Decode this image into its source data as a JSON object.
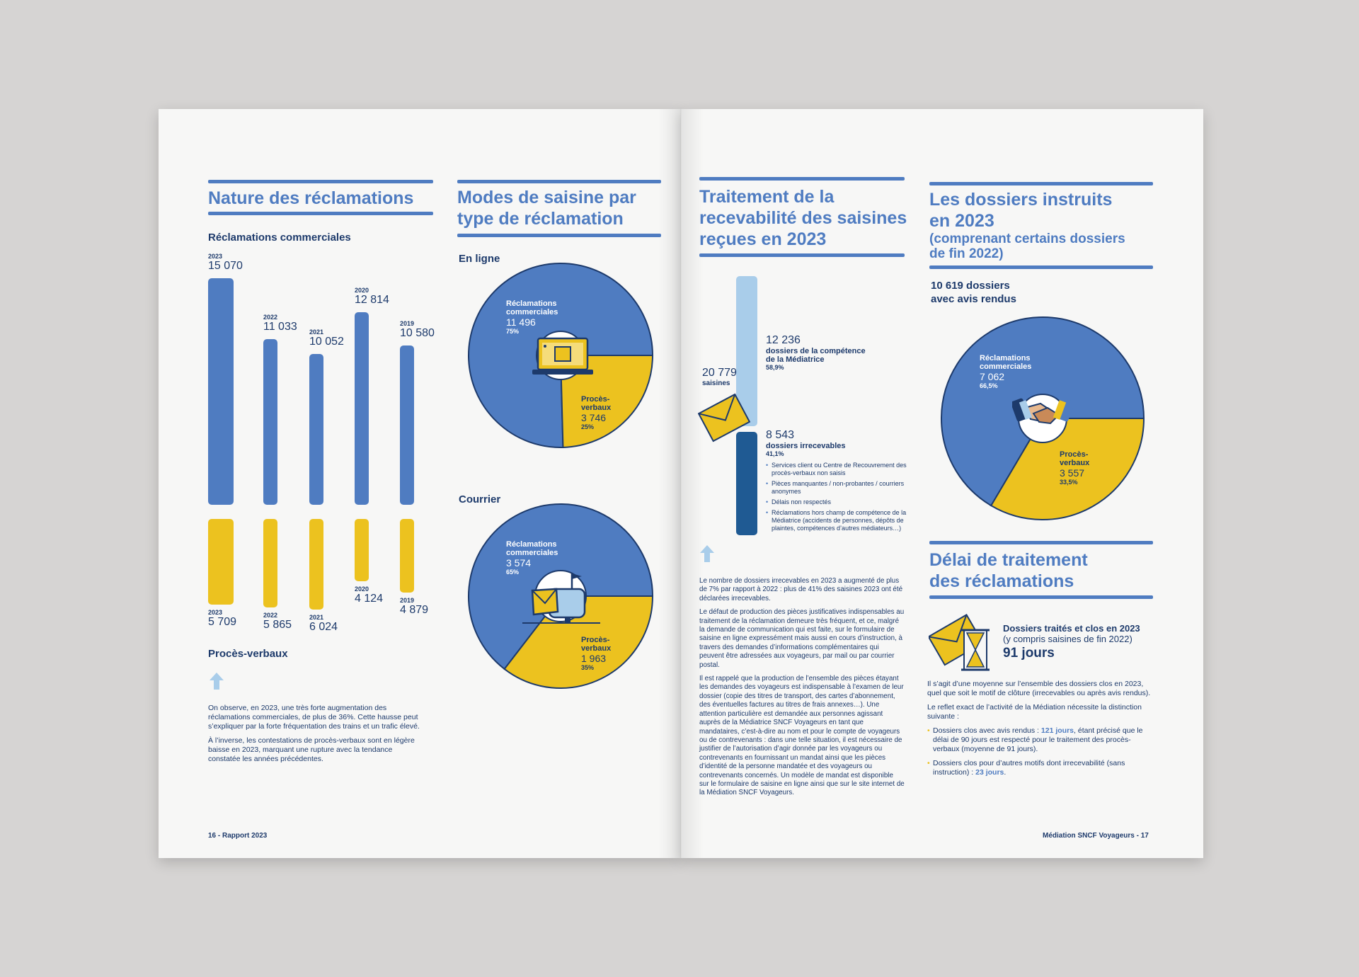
{
  "left": {
    "nature": {
      "title": "Nature des réclamations",
      "subtitle": "Réclamations commerciales",
      "commercial_bars": [
        {
          "year": "2023",
          "value": "15 070"
        },
        {
          "year": "2022",
          "value": "11 033"
        },
        {
          "year": "2021",
          "value": "10 052"
        },
        {
          "year": "2020",
          "value": "12 814"
        },
        {
          "year": "2019",
          "value": "10 580"
        }
      ],
      "pv_bars": [
        {
          "year": "2023",
          "value": "5 709"
        },
        {
          "year": "2022",
          "value": "5 865"
        },
        {
          "year": "2021",
          "value": "6 024"
        },
        {
          "year": "2020",
          "value": "4 124"
        },
        {
          "year": "2019",
          "value": "4 879"
        }
      ],
      "pv_label": "Procès-verbaux",
      "paragraph1": "On observe, en 2023, une très forte augmentation des réclamations commerciales, de plus de 36%. Cette hausse peut s’expliquer par la forte fréquentation des trains et un trafic élevé.",
      "paragraph2": "À l’inverse, les contestations de procès-verbaux sont en légère baisse en 2023, marquant une rupture avec la tendance constatée les années précédentes."
    },
    "modes": {
      "title_line1": "Modes de saisine par",
      "title_line2": "type de réclamation",
      "online": {
        "label": "En ligne",
        "commercial_label_1": "Réclamations",
        "commercial_label_2": "commerciales",
        "commercial_value": "11 496",
        "commercial_pct": "75%",
        "pv_label_1": "Procès-",
        "pv_label_2": "verbaux",
        "pv_value": "3 746",
        "pv_pct": "25%"
      },
      "mail": {
        "label": "Courrier",
        "commercial_label_1": "Réclamations",
        "commercial_label_2": "commerciales",
        "commercial_value": "3 574",
        "commercial_pct": "65%",
        "pv_label_1": "Procès-",
        "pv_label_2": "verbaux",
        "pv_value": "1 963",
        "pv_pct": "35%"
      }
    },
    "footer": "16 - Rapport 2023"
  },
  "right": {
    "traitement": {
      "title_line1": "Traitement de la",
      "title_line2": "recevabilité des saisines",
      "title_line3": "reçues en 2023",
      "total_value": "20 779",
      "total_label": "saisines",
      "competence_value": "12 236",
      "competence_label_1": "dossiers de la compétence",
      "competence_label_2": "de la Médiatrice",
      "competence_pct": "58,9%",
      "irrecevable_value": "8 543",
      "irrecevable_label": "dossiers irrecevables",
      "irrecevable_pct": "41,1%",
      "bullets": [
        "Services client ou Centre de Recouvrement des procès-verbaux non saisis",
        "Pièces manquantes / non-probantes / courriers anonymes",
        "Délais non respectés",
        "Réclamations hors champ de compétence de la Médiatrice (accidents de personnes, dépôts de plaintes, compétences d’autres médiateurs…)"
      ],
      "paragraph1": "Le nombre de dossiers irrecevables en 2023 a augmenté de plus de 7% par rapport à 2022 : plus de 41% des saisines 2023 ont été déclarées irrecevables.",
      "paragraph2": "Le défaut de production des pièces justificatives indispensables au traitement de la réclamation demeure très fréquent, et ce, malgré la demande de communication qui est faite, sur le formulaire de saisine en ligne expressément mais aussi en cours d’instruction, à travers des demandes d’informations complémentaires qui peuvent être adressées aux voyageurs, par mail ou par courrier postal.",
      "paragraph3": "Il est rappelé que la production de l’ensemble des pièces étayant les demandes des voyageurs est indispensable à l’examen de leur dossier (copie des titres de transport, des cartes d’abonnement, des éventuelles factures au titres de frais annexes…). Une attention particulière est demandée aux personnes agissant auprès de la Médiatrice SNCF Voyageurs en tant que mandataires, c’est-à-dire au nom et pour le compte de voyageurs ou de contrevenants : dans une telle situation, il est nécessaire de justifier de l’autorisation d’agir donnée par les voyageurs ou contrevenants en fournissant un mandat ainsi que les pièces d’identité de la personne mandatée et des voyageurs ou contrevenants concernés. Un modèle de mandat est disponible sur le formulaire de saisine en ligne ainsi que sur le site internet de la Médiation SNCF Voyageurs."
    },
    "dossiers": {
      "title_line1": "Les dossiers instruits",
      "title_line2": "en 2023",
      "title_line3": "(comprenant certains dossiers",
      "title_line4": "de fin 2022)",
      "count_line1": "10 619 dossiers",
      "count_line2": "avec avis rendus",
      "commercial_label_1": "Réclamations",
      "commercial_label_2": "commerciales",
      "commercial_value": "7 062",
      "commercial_pct": "66,5%",
      "pv_label_1": "Procès-",
      "pv_label_2": "verbaux",
      "pv_value": "3 557",
      "pv_pct": "33,5%"
    },
    "delai": {
      "title_line1": "Délai de traitement",
      "title_line2": "des réclamations",
      "box_line1": "Dossiers traités et clos en 2023",
      "box_line2": "(y compris saisines de fin 2022)",
      "box_value": "91 jours",
      "paragraph1": "Il s’agit d’une moyenne sur l’ensemble des dossiers clos en 2023, quel que soit le motif de clôture (irrecevables ou après avis rendus).",
      "paragraph2": "Le reflet exact de l’activité de la Médiation nécessite la distinction suivante :",
      "bullet1_pre": "Dossiers clos avec avis rendus : ",
      "bullet1_hl": "121 jours",
      "bullet1_post": ", étant précisé que le délai de 90 jours est respecté pour le traitement des procès-verbaux (moyenne de 91 jours).",
      "bullet2_pre": "Dossiers clos pour d’autres motifs dont irrecevabilité (sans instruction) : ",
      "bullet2_hl": "23 jours",
      "bullet2_post": "."
    },
    "footer": "Médiation SNCF Voyageurs - 17"
  },
  "colors": {
    "blue": "#4f7cc1",
    "yellow": "#ecc21f",
    "navy": "#1d3a6b",
    "light_blue": "#a9cdea",
    "dark_blue": "#1f5a93"
  },
  "chart_data": [
    {
      "type": "bar",
      "title": "Réclamations commerciales",
      "categories": [
        "2023",
        "2022",
        "2021",
        "2020",
        "2019"
      ],
      "values": [
        15070,
        11033,
        10052,
        12814,
        10580
      ]
    },
    {
      "type": "bar",
      "title": "Procès-verbaux",
      "categories": [
        "2023",
        "2022",
        "2021",
        "2020",
        "2019"
      ],
      "values": [
        5709,
        5865,
        6024,
        4124,
        4879
      ]
    },
    {
      "type": "pie",
      "title": "En ligne",
      "categories": [
        "Réclamations commerciales",
        "Procès-verbaux"
      ],
      "values": [
        11496,
        3746
      ]
    },
    {
      "type": "pie",
      "title": "Courrier",
      "categories": [
        "Réclamations commerciales",
        "Procès-verbaux"
      ],
      "values": [
        3574,
        1963
      ]
    },
    {
      "type": "bar",
      "title": "Traitement de la recevabilité des saisines reçues en 2023",
      "categories": [
        "dossiers de la compétence de la Médiatrice",
        "dossiers irrecevables"
      ],
      "values": [
        12236,
        8543
      ]
    },
    {
      "type": "pie",
      "title": "Les dossiers instruits en 2023",
      "categories": [
        "Réclamations commerciales",
        "Procès-verbaux"
      ],
      "values": [
        7062,
        3557
      ]
    }
  ]
}
